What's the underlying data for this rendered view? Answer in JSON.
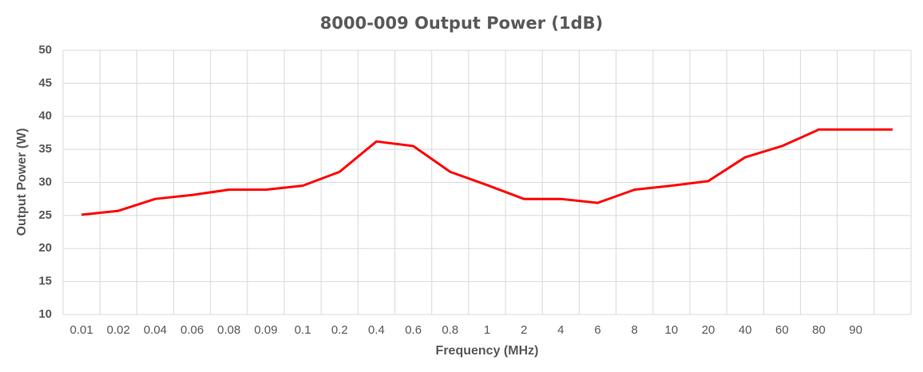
{
  "chart_data": {
    "type": "line",
    "title": "8000-009 Output Power (1dB)",
    "x_label": "Frequency (MHz)",
    "y_label": "Output Power (W)",
    "categories": [
      "0.01",
      "0.02",
      "0.04",
      "0.06",
      "0.08",
      "0.09",
      "0.1",
      "0.2",
      "0.4",
      "0.6",
      "0.8",
      "1",
      "2",
      "4",
      "6",
      "8",
      "10",
      "20",
      "40",
      "60",
      "80",
      "90",
      null
    ],
    "series": [
      {
        "name": "Output Power",
        "color": "#ff0000",
        "values": [
          25.1,
          25.7,
          27.5,
          28.1,
          28.9,
          28.9,
          29.5,
          31.6,
          36.2,
          35.5,
          31.6,
          29.6,
          27.5,
          27.5,
          26.9,
          28.9,
          29.5,
          30.2,
          33.8,
          35.5,
          38,
          38,
          38
        ]
      }
    ],
    "ylim": [
      10,
      50
    ],
    "yticks": [
      10,
      15,
      20,
      25,
      30,
      35,
      40,
      45,
      50
    ],
    "grid": true
  }
}
